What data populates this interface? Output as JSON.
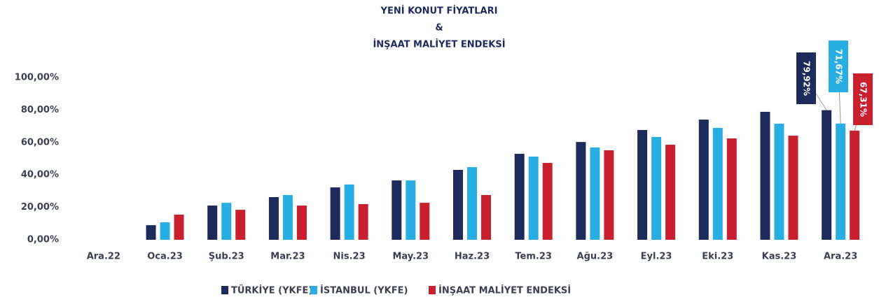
{
  "chart_data": {
    "type": "bar",
    "title": [
      "YENİ KONUT FİYATLARI",
      "&",
      "İNŞAAT MALİYET ENDEKSİ"
    ],
    "categories": [
      "Ara.22",
      "Oca.23",
      "Şub.23",
      "Mar.23",
      "Nis.23",
      "May.23",
      "Haz.23",
      "Tem.23",
      "Ağu.23",
      "Eyl.23",
      "Eki.23",
      "Kas.23",
      "Ara.23"
    ],
    "series": [
      {
        "name": "TÜRKİYE (YKFE)",
        "color": "#1c2a5c",
        "values": [
          0,
          9.0,
          21.1,
          26.3,
          32.3,
          36.6,
          43.1,
          53.0,
          60.3,
          67.7,
          74.1,
          78.9,
          79.92
        ],
        "value_labels": [
          null,
          null,
          null,
          null,
          null,
          null,
          null,
          null,
          null,
          null,
          null,
          null,
          "79,92%"
        ]
      },
      {
        "name": "İSTANBUL (YKFE)",
        "color": "#29aee3",
        "values": [
          0,
          10.8,
          22.8,
          27.6,
          34.1,
          36.6,
          44.8,
          51.3,
          56.9,
          63.4,
          69.0,
          71.6,
          71.67
        ],
        "value_labels": [
          null,
          null,
          null,
          null,
          null,
          null,
          null,
          null,
          null,
          null,
          null,
          null,
          "71,67%"
        ]
      },
      {
        "name": "İNŞAAT MALİYET ENDEKSİ",
        "color": "#c8202f",
        "values": [
          0,
          15.5,
          18.5,
          21.1,
          22.0,
          22.8,
          27.6,
          47.4,
          55.2,
          58.6,
          62.5,
          64.2,
          67.31
        ],
        "value_labels": [
          null,
          null,
          null,
          null,
          null,
          null,
          null,
          null,
          null,
          null,
          null,
          null,
          "67,31%"
        ]
      }
    ],
    "ylim": [
      0,
      100
    ],
    "yticks": [
      {
        "value": 0,
        "label": "0,00%"
      },
      {
        "value": 20,
        "label": "20,00%"
      },
      {
        "value": 40,
        "label": "40,00%"
      },
      {
        "value": 60,
        "label": "60,00%"
      },
      {
        "value": 80,
        "label": "80,00%"
      },
      {
        "value": 100,
        "label": "100,00%"
      }
    ],
    "grid": false,
    "legend": "bottom"
  }
}
